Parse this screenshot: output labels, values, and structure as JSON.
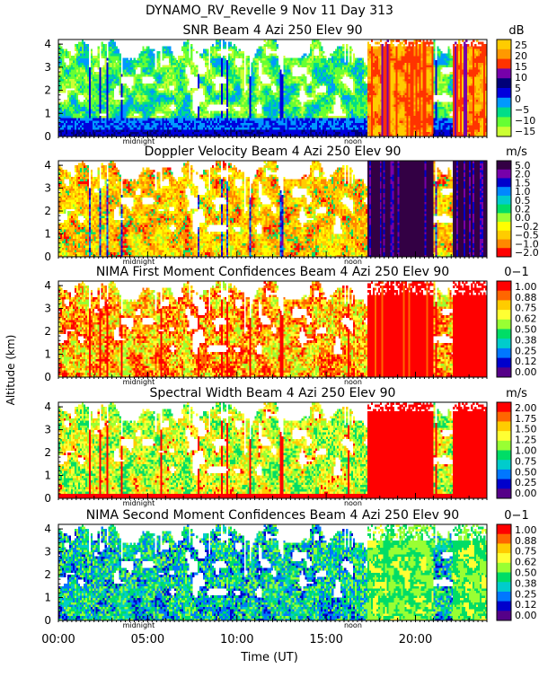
{
  "page": {
    "header": "DYNAMO_RV_Revelle    9 Nov 11 Day 313",
    "ylabel": "Altitude (km)",
    "xlabel": "Time (UT)",
    "xticks": [
      "00:00",
      "05:00",
      "10:00",
      "15:00",
      "20:00"
    ],
    "markers": [
      {
        "label": "midnight",
        "x_hours": 4.5
      },
      {
        "label": "noon",
        "x_hours": 16.5
      }
    ]
  },
  "colors": {
    "white": "#ffffff"
  },
  "chart_data": [
    {
      "type": "heatmap",
      "title": "SNR Beam 4 Azi 250 Elev 90",
      "unit": "dB",
      "x_range_hours": [
        0,
        24
      ],
      "ylim": [
        0,
        4.2
      ],
      "yticks": [
        0,
        1,
        2,
        3,
        4
      ],
      "colorbar_labels": [
        "25",
        "20",
        "15",
        "10",
        "5",
        "0",
        "−5",
        "−10",
        "−15"
      ],
      "colorbar_colors": [
        "#ffcc00",
        "#ff9900",
        "#ff3300",
        "#7700aa",
        "#000077",
        "#0000dd",
        "#0099ff",
        "#00dd88",
        "#66ff33",
        "#ccff33"
      ],
      "pattern": "snr"
    },
    {
      "type": "heatmap",
      "title": "Doppler Velocity Beam 4 Azi 250 Elev 90",
      "unit": "m/s",
      "x_range_hours": [
        0,
        24
      ],
      "ylim": [
        0,
        4.2
      ],
      "yticks": [
        0,
        1,
        2,
        3,
        4
      ],
      "colorbar_labels": [
        "5.0",
        "2.0",
        "1.5",
        "1.0",
        "0.5",
        "0.2",
        "0.0",
        "−0.2",
        "−0.5",
        "−1.0",
        "−2.0"
      ],
      "colorbar_colors": [
        "#330044",
        "#7700aa",
        "#0000cc",
        "#0088ff",
        "#00cccc",
        "#00dd66",
        "#99ff33",
        "#ffff00",
        "#ffcc00",
        "#ff8800",
        "#ff0000"
      ],
      "pattern": "doppler"
    },
    {
      "type": "heatmap",
      "title": "NIMA First Moment Confidences Beam 4 Azi 250 Elev 90",
      "unit": "0−1",
      "x_range_hours": [
        0,
        24
      ],
      "ylim": [
        0,
        4.2
      ],
      "yticks": [
        0,
        1,
        2,
        3,
        4
      ],
      "colorbar_labels": [
        "1.00",
        "0.88",
        "0.75",
        "0.62",
        "0.50",
        "0.38",
        "0.25",
        "0.12",
        "0.00"
      ],
      "colorbar_colors": [
        "#ff0000",
        "#ff6600",
        "#ffcc00",
        "#ffff33",
        "#99ff33",
        "#00dd66",
        "#00cccc",
        "#0077ff",
        "#0000cc",
        "#550088"
      ],
      "pattern": "conf1"
    },
    {
      "type": "heatmap",
      "title": "Spectral Width Beam 4 Azi 250 Elev 90",
      "unit": "m/s",
      "x_range_hours": [
        0,
        24
      ],
      "ylim": [
        0,
        4.2
      ],
      "yticks": [
        0,
        1,
        2,
        3,
        4
      ],
      "colorbar_labels": [
        "2.00",
        "1.75",
        "1.50",
        "1.25",
        "1.00",
        "0.75",
        "0.50",
        "0.25",
        "0.00"
      ],
      "colorbar_colors": [
        "#ff0000",
        "#ff6600",
        "#ffcc00",
        "#ffff33",
        "#99ff33",
        "#00dd66",
        "#00cccc",
        "#0077ff",
        "#0000cc",
        "#550088"
      ],
      "pattern": "width"
    },
    {
      "type": "heatmap",
      "title": "NIMA Second Moment Confidences Beam 4 Azi 250 Elev 90",
      "unit": "0−1",
      "x_range_hours": [
        0,
        24
      ],
      "ylim": [
        0,
        4.2
      ],
      "yticks": [
        0,
        1,
        2,
        3,
        4
      ],
      "colorbar_labels": [
        "1.00",
        "0.88",
        "0.75",
        "0.62",
        "0.50",
        "0.38",
        "0.25",
        "0.12",
        "0.00"
      ],
      "colorbar_colors": [
        "#ff0000",
        "#ff6600",
        "#ffcc00",
        "#ffff33",
        "#99ff33",
        "#00dd66",
        "#00cccc",
        "#0077ff",
        "#0000cc",
        "#550088"
      ],
      "pattern": "conf2"
    }
  ]
}
